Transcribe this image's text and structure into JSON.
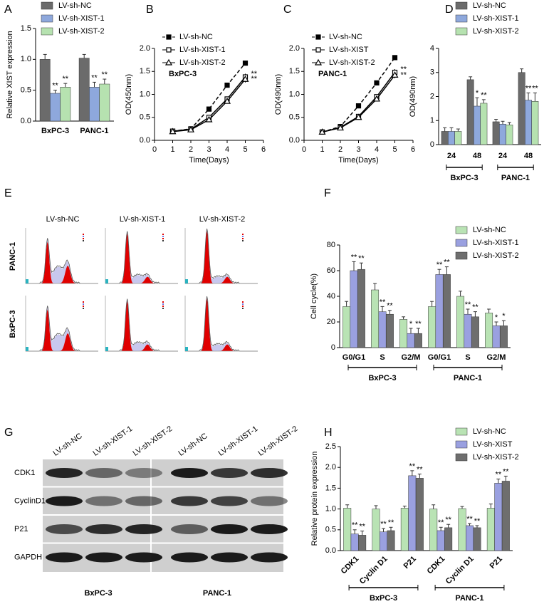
{
  "chart_data": [
    {
      "panel": "A",
      "type": "bar",
      "y_label": "Relative XIST expression",
      "categories": [
        "BxPC-3",
        "PANC-1"
      ],
      "series": [
        {
          "name": "LV-sh-NC",
          "color": "#6b6b6b",
          "values": [
            1.0,
            1.02
          ],
          "errors": [
            0.08,
            0.06
          ],
          "significance": [
            null,
            null
          ]
        },
        {
          "name": "LV-sh-XIST-1",
          "color": "#8ea8dc",
          "values": [
            0.45,
            0.55
          ],
          "errors": [
            0.05,
            0.08
          ],
          "significance": [
            "**",
            "**"
          ]
        },
        {
          "name": "LV-sh-XIST-2",
          "color": "#b6e2b0",
          "values": [
            0.55,
            0.6
          ],
          "errors": [
            0.06,
            0.08
          ],
          "significance": [
            "**",
            "**"
          ]
        }
      ],
      "ylim": [
        0,
        1.5
      ],
      "yticks": [
        {
          "value": 0,
          "label": "0.0"
        },
        {
          "value": 0.5,
          "label": "0.5"
        },
        {
          "value": 1,
          "label": "1.0"
        },
        {
          "value": 1.5,
          "label": "1.5"
        }
      ],
      "legend": "upper left"
    },
    {
      "panel": "B",
      "type": "line",
      "annotation": "BxPC-3",
      "x_label": "Time(Days)",
      "y_label": "OD(450nm)",
      "x": [
        1,
        2,
        3,
        4,
        5
      ],
      "series": [
        {
          "name": "LV-sh-NC",
          "color": "#000000",
          "line_style": "dashed",
          "marker": "square",
          "values": [
            0.2,
            0.25,
            0.68,
            1.2,
            1.68
          ],
          "errors": [
            0.02,
            0.02,
            0.03,
            0.03,
            0.05
          ],
          "significance": [
            null,
            null,
            null,
            null,
            null
          ]
        },
        {
          "name": "LV-sh-XIST-1",
          "color": "#000000",
          "line_style": "solid",
          "marker": "open-square",
          "values": [
            0.2,
            0.24,
            0.5,
            0.9,
            1.38
          ],
          "errors": [
            0.02,
            0.02,
            0.04,
            0.05,
            0.07
          ],
          "significance": [
            null,
            null,
            null,
            null,
            "**"
          ]
        },
        {
          "name": "LV-sh-XIST-2",
          "color": "#000000",
          "line_style": "solid",
          "marker": "open-triangle",
          "values": [
            0.19,
            0.23,
            0.45,
            0.85,
            1.33
          ],
          "errors": [
            0.02,
            0.02,
            0.04,
            0.05,
            0.07
          ],
          "significance": [
            null,
            null,
            null,
            null,
            "**"
          ]
        }
      ],
      "xlim": [
        0,
        6
      ],
      "xticks": [
        0,
        1,
        2,
        3,
        4,
        5,
        6
      ],
      "ylim": [
        0,
        2
      ],
      "yticks": [
        {
          "value": 0,
          "label": "0.0"
        },
        {
          "value": 0.5,
          "label": "0.5"
        },
        {
          "value": 1,
          "label": "1.0"
        },
        {
          "value": 1.5,
          "label": "1.5"
        },
        {
          "value": 2,
          "label": "2.0"
        }
      ],
      "legend": "upper left"
    },
    {
      "panel": "C",
      "type": "line",
      "annotation": "PANC-1",
      "x_label": "Time(Days)",
      "y_label": "OD(490nm)",
      "x": [
        1,
        2,
        3,
        4,
        5
      ],
      "series": [
        {
          "name": "LV-sh-NC",
          "color": "#000000",
          "line_style": "dashed",
          "marker": "square",
          "values": [
            0.18,
            0.3,
            0.75,
            1.25,
            1.8
          ],
          "errors": [
            0.02,
            0.02,
            0.03,
            0.03,
            0.05
          ],
          "significance": [
            null,
            null,
            null,
            null,
            null
          ]
        },
        {
          "name": "LV-sh-XIST",
          "color": "#000000",
          "line_style": "solid",
          "marker": "open-square",
          "values": [
            0.18,
            0.28,
            0.52,
            0.95,
            1.48
          ],
          "errors": [
            0.02,
            0.02,
            0.04,
            0.05,
            0.07
          ],
          "significance": [
            null,
            null,
            null,
            null,
            "**"
          ]
        },
        {
          "name": "LV-sh-XIST-2",
          "color": "#000000",
          "line_style": "solid",
          "marker": "open-triangle",
          "values": [
            0.18,
            0.27,
            0.5,
            0.9,
            1.42
          ],
          "errors": [
            0.02,
            0.02,
            0.04,
            0.05,
            0.07
          ],
          "significance": [
            null,
            null,
            null,
            null,
            "**"
          ]
        }
      ],
      "xlim": [
        0,
        6
      ],
      "xticks": [
        0,
        1,
        2,
        3,
        4,
        5,
        6
      ],
      "ylim": [
        0,
        2
      ],
      "yticks": [
        {
          "value": 0,
          "label": "0.0"
        },
        {
          "value": 0.5,
          "label": "0.5"
        },
        {
          "value": 1,
          "label": "1.0"
        },
        {
          "value": 1.5,
          "label": "1.5"
        },
        {
          "value": 2,
          "label": "2.0"
        }
      ],
      "legend": "upper left"
    },
    {
      "panel": "D",
      "type": "bar",
      "y_label": "OD(490nm)",
      "categories": [
        "24",
        "48",
        "24",
        "48"
      ],
      "groups": [
        "BxPC-3",
        "PANC-1"
      ],
      "series": [
        {
          "name": "LV-sh-NC",
          "color": "#6b6b6b",
          "values": [
            0.55,
            2.7,
            0.95,
            3.0
          ],
          "errors": [
            0.15,
            0.12,
            0.1,
            0.15
          ],
          "significance": [
            null,
            null,
            null,
            null
          ]
        },
        {
          "name": "LV-sh-XIST-1",
          "color": "#8ea8dc",
          "values": [
            0.55,
            1.6,
            0.85,
            1.85
          ],
          "errors": [
            0.15,
            0.35,
            0.12,
            0.3
          ],
          "significance": [
            null,
            "*",
            null,
            "**"
          ]
        },
        {
          "name": "LV-sh-XIST-2",
          "color": "#b6e2b0",
          "values": [
            0.55,
            1.72,
            0.82,
            1.8
          ],
          "errors": [
            0.1,
            0.15,
            0.1,
            0.35
          ],
          "significance": [
            null,
            "**",
            null,
            "**"
          ]
        }
      ],
      "ylim": [
        0,
        4
      ],
      "yticks": [
        0,
        1,
        2,
        3,
        4
      ],
      "legend": "upper left"
    },
    {
      "panel": "F",
      "type": "bar",
      "y_label": "Cell cycle(%)",
      "categories": [
        "G0/G1",
        "S",
        "G2/M",
        "G0/G1",
        "S",
        "G2/M"
      ],
      "groups": [
        "BxPC-3",
        "PANC-1"
      ],
      "series": [
        {
          "name": "LV-sh-NC",
          "color": "#b9e3b4",
          "values": [
            32,
            45,
            22,
            32,
            40,
            27
          ],
          "errors": [
            4,
            5,
            2,
            4,
            4,
            3
          ],
          "significance": [
            null,
            null,
            null,
            null,
            null,
            null
          ]
        },
        {
          "name": "LV-sh-XIST-1",
          "color": "#9aa0e0",
          "values": [
            60,
            28,
            11,
            57,
            26,
            17
          ],
          "errors": [
            7,
            4,
            4,
            4,
            4,
            3
          ],
          "significance": [
            "**",
            "**",
            "*",
            "**",
            "**",
            "*"
          ]
        },
        {
          "name": "LV-sh-XIST-2",
          "color": "#6e6e6e",
          "values": [
            61,
            26,
            11,
            57,
            24,
            17
          ],
          "errors": [
            5,
            3,
            4,
            6,
            4,
            4
          ],
          "significance": [
            "**",
            "**",
            "**",
            "**",
            "**",
            "*"
          ]
        }
      ],
      "ylim": [
        0,
        80
      ],
      "yticks": [
        0,
        20,
        40,
        60,
        80
      ],
      "legend": "upper right"
    },
    {
      "panel": "H",
      "type": "bar",
      "y_label": "Relative protein expression",
      "categories": [
        "CDK1",
        "Cyclin D1",
        "P21",
        "CDK1",
        "Cyclin D1",
        "P21"
      ],
      "groups": [
        "BxPC-3",
        "PANC-1"
      ],
      "series": [
        {
          "name": "LV-sh-NC",
          "color": "#b9e3b4",
          "values": [
            1.02,
            1.0,
            1.02,
            1.0,
            1.01,
            1.02
          ],
          "errors": [
            0.08,
            0.08,
            0.05,
            0.1,
            0.05,
            0.1
          ],
          "significance": [
            null,
            null,
            null,
            null,
            null,
            null
          ]
        },
        {
          "name": "LV-sh-XIST",
          "color": "#9aa0e0",
          "values": [
            0.4,
            0.45,
            1.8,
            0.48,
            0.6,
            1.62
          ],
          "errors": [
            0.1,
            0.08,
            0.12,
            0.08,
            0.05,
            0.1
          ],
          "significance": [
            "**",
            "**",
            "**",
            "**",
            "**",
            "**"
          ]
        },
        {
          "name": "LV-sh-XIST-2",
          "color": "#6e6e6e",
          "values": [
            0.37,
            0.48,
            1.74,
            0.55,
            0.55,
            1.67
          ],
          "errors": [
            0.1,
            0.08,
            0.1,
            0.08,
            0.05,
            0.12
          ],
          "significance": [
            "**",
            "**",
            "**",
            "**",
            "**",
            "**"
          ]
        }
      ],
      "ylim": [
        0,
        2.5
      ],
      "yticks": [
        {
          "value": 0,
          "label": "0.0"
        },
        {
          "value": 0.5,
          "label": "0.5"
        },
        {
          "value": 1,
          "label": "1.0"
        },
        {
          "value": 1.5,
          "label": "1.5"
        },
        {
          "value": 2,
          "label": "2.0"
        },
        {
          "value": 2.5,
          "label": "2.5"
        }
      ],
      "legend": "upper right"
    }
  ],
  "flow_panel": {
    "panel": "E",
    "columns": [
      "LV-sh-NC",
      "LV-sh-XIST-1",
      "LV-sh-XIST-2"
    ],
    "rows": [
      "PANC-1",
      "BxPC-3"
    ]
  },
  "blot_panel": {
    "panel": "G",
    "columns": [
      "LV-sh-NC",
      "LV-sh-XIST-1",
      "LV-sh-XIST-2",
      "LV-sh-NC",
      "LV-sh-XIST-1",
      "LV-sh-XIST-2"
    ],
    "rows": [
      "CDK1",
      "CyclinD1",
      "P21",
      "GAPDH"
    ],
    "groups": [
      "BxPC-3",
      "PANC-1"
    ]
  }
}
